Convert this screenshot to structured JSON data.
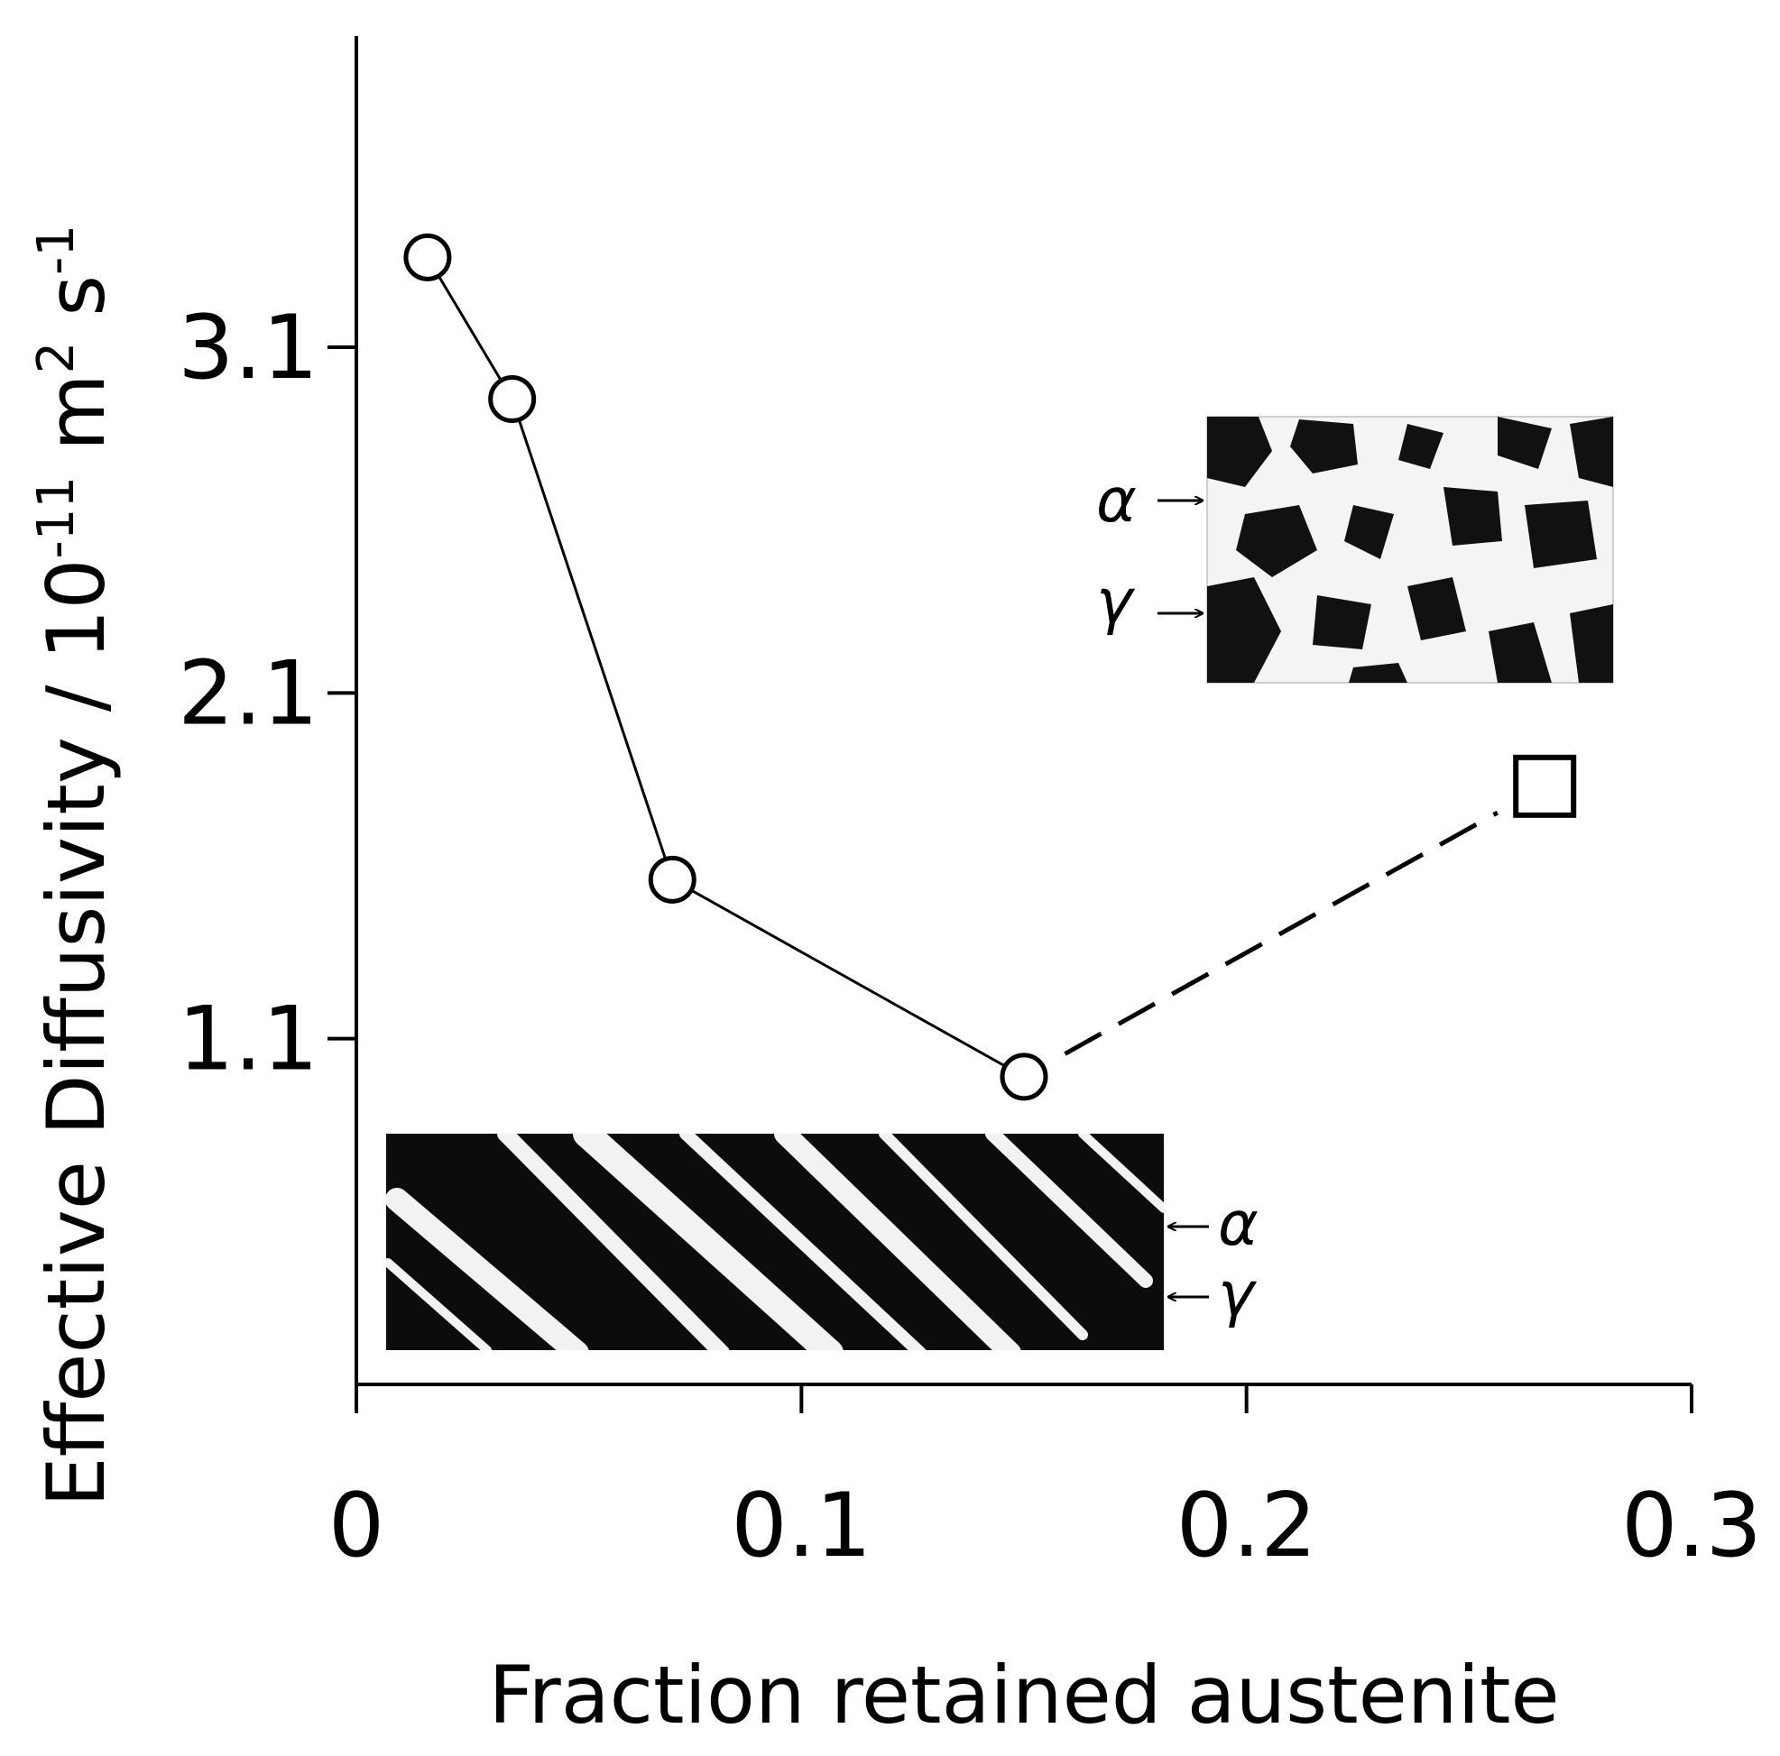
{
  "chart_data": {
    "type": "line",
    "xlabel": "Fraction retained austenite",
    "ylabel_main": "Effective Diffusivity / 10",
    "ylabel_exp1": "-11",
    "ylabel_mid": " m",
    "ylabel_exp2": "2",
    "ylabel_mid2": " s",
    "ylabel_exp3": "-1",
    "xlim": [
      0,
      0.3
    ],
    "ylim": [
      0.1,
      4.0
    ],
    "x_ticks": [
      0,
      0.1,
      0.2,
      0.3
    ],
    "x_tick_labels": [
      "0",
      "0.1",
      "0.2",
      "0.3"
    ],
    "y_ticks": [
      1.1,
      2.1,
      3.1
    ],
    "y_tick_labels": [
      "1.1",
      "2.1",
      "3.1"
    ],
    "grid": false,
    "series": [
      {
        "marker": "circle",
        "line": "solid",
        "x": [
          0.016,
          0.035,
          0.071,
          0.15
        ],
        "y": [
          3.36,
          2.95,
          1.56,
          0.99
        ]
      },
      {
        "marker": "square",
        "line": "dashed",
        "x": [
          0.15,
          0.267
        ],
        "y": [
          0.99,
          1.83
        ],
        "hollow_start": true
      }
    ],
    "insets": [
      {
        "name": "equiaxed micrograph",
        "labels": [
          "α",
          "γ"
        ],
        "arrow_direction": "right"
      },
      {
        "name": "lath micrograph",
        "labels": [
          "α",
          "γ"
        ],
        "arrow_direction": "left"
      }
    ],
    "colors": {
      "ink": "#000000",
      "background": "#ffffff"
    }
  }
}
